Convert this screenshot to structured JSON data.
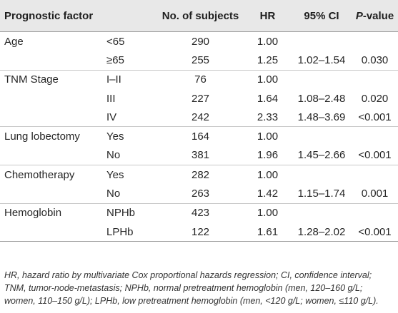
{
  "headers": {
    "factor": "Prognostic factor",
    "subjects": "No. of subjects",
    "hr": "HR",
    "ci": "95% CI",
    "pvalue_letter": "P",
    "pvalue_rest": "-value"
  },
  "rows": [
    {
      "factor": "Age",
      "level": "<65",
      "n": "290",
      "hr": "1.00",
      "ci": "",
      "p": ""
    },
    {
      "factor": "",
      "level": "≥65",
      "n": "255",
      "hr": "1.25",
      "ci": "1.02–1.54",
      "p": "0.030"
    },
    {
      "factor": "TNM Stage",
      "level": "I–II",
      "n": "76",
      "hr": "1.00",
      "ci": "",
      "p": ""
    },
    {
      "factor": "",
      "level": "III",
      "n": "227",
      "hr": "1.64",
      "ci": "1.08–2.48",
      "p": "0.020"
    },
    {
      "factor": "",
      "level": "IV",
      "n": "242",
      "hr": "2.33",
      "ci": "1.48–3.69",
      "p": "<0.001"
    },
    {
      "factor": "Lung lobectomy",
      "level": "Yes",
      "n": "164",
      "hr": "1.00",
      "ci": "",
      "p": ""
    },
    {
      "factor": "",
      "level": "No",
      "n": "381",
      "hr": "1.96",
      "ci": "1.45–2.66",
      "p": "<0.001"
    },
    {
      "factor": "Chemotherapy",
      "level": "Yes",
      "n": "282",
      "hr": "1.00",
      "ci": "",
      "p": ""
    },
    {
      "factor": "",
      "level": "No",
      "n": "263",
      "hr": "1.42",
      "ci": "1.15–1.74",
      "p": "0.001"
    },
    {
      "factor": "Hemoglobin",
      "level": "NPHb",
      "n": "423",
      "hr": "1.00",
      "ci": "",
      "p": ""
    },
    {
      "factor": "",
      "level": "LPHb",
      "n": "122",
      "hr": "1.61",
      "ci": "1.28–2.02",
      "p": "<0.001"
    }
  ],
  "footnote": "HR, hazard ratio by multivariate Cox proportional hazards regression; CI, confidence interval; TNM, tumor-node-metastasis; NPHb, normal pretreatment hemoglobin (men, 120–160 g/L; women, 110–150 g/L); LPHb, low pretreatment hemoglobin (men, <120 g/L; women, ≤110 g/L)."
}
